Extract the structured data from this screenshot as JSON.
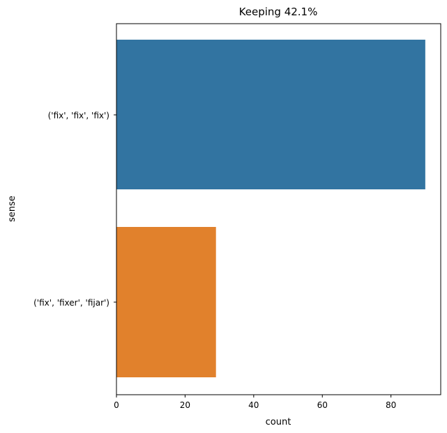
{
  "chart_data": {
    "type": "bar",
    "orientation": "horizontal",
    "title": "Keeping 42.1%",
    "xlabel": "count",
    "ylabel": "sense",
    "categories": [
      "('fix', 'fix', 'fix')",
      "('fix', 'fixer', 'fijar')"
    ],
    "values": [
      90,
      29
    ],
    "colors": [
      "#3274a1",
      "#e1812c"
    ],
    "xlim": [
      0,
      94.5
    ],
    "xticks": [
      0,
      20,
      40,
      60,
      80
    ],
    "grid": false,
    "legend": "none"
  }
}
